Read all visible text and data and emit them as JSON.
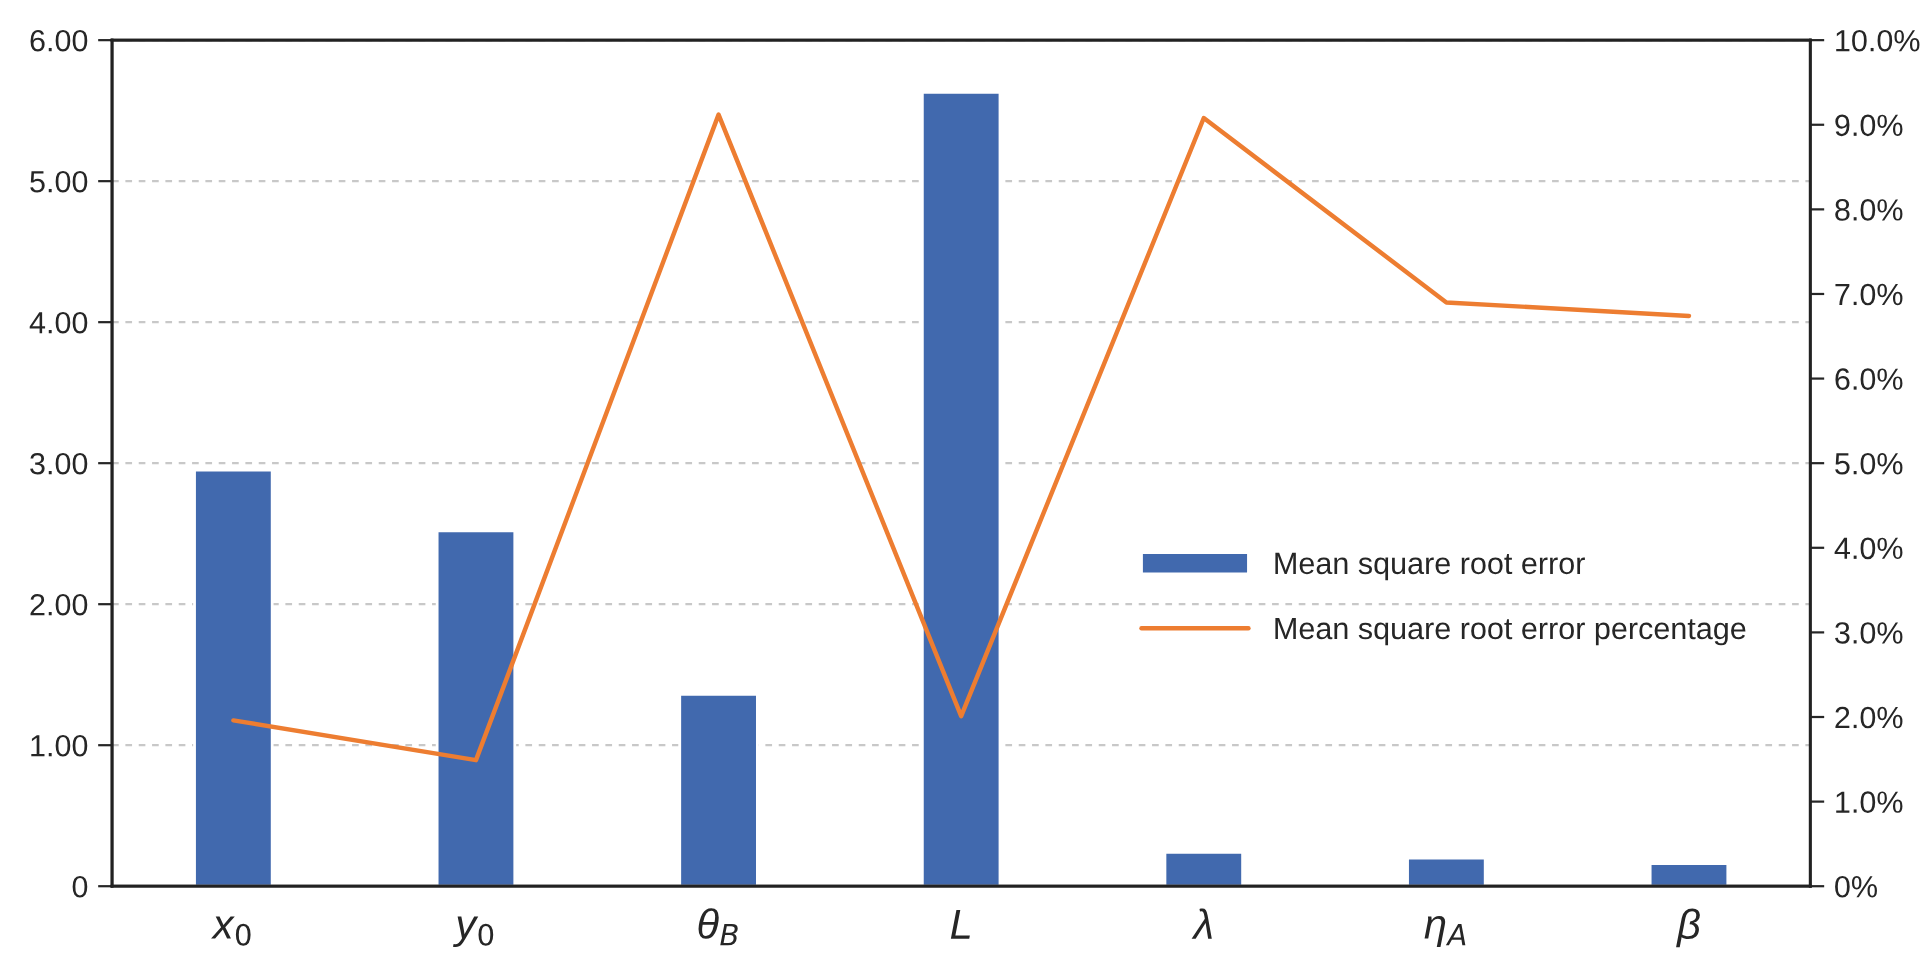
{
  "chart_data": {
    "type": "bar",
    "categories": [
      "x$_{0}$",
      "y$_{0}$",
      "θ$_{B}$",
      "L",
      "λ",
      "η$_{A}$",
      "β"
    ],
    "series": [
      {
        "name": "Mean square root error",
        "color": "#4169ae",
        "values": [
          2.95,
          2.52,
          1.36,
          5.63,
          0.24,
          0.2,
          0.16
        ]
      },
      {
        "name": "Mean square root error percentage",
        "type": "line",
        "axis": "y2",
        "color": "#ed7d31",
        "values": [
          1.96,
          1.49,
          9.12,
          2.01,
          9.08,
          6.9,
          6.74
        ]
      }
    ],
    "ylim": [
      0,
      6
    ],
    "yticks": [
      {
        "value": 0,
        "label": "0"
      },
      {
        "value": 1,
        "label": "1.00"
      },
      {
        "value": 2,
        "label": "2.00"
      },
      {
        "value": 3,
        "label": "3.00"
      },
      {
        "value": 4,
        "label": "4.00"
      },
      {
        "value": 5,
        "label": "5.00"
      },
      {
        "value": 6,
        "label": "6.00"
      }
    ],
    "y2lim": [
      0,
      10
    ],
    "y2ticks": [
      {
        "value": 0,
        "label": "0%"
      },
      {
        "value": 1,
        "label": "1.0%"
      },
      {
        "value": 2,
        "label": "2.0%"
      },
      {
        "value": 3,
        "label": "3.0%"
      },
      {
        "value": 4,
        "label": "4.0%"
      },
      {
        "value": 5,
        "label": "5.0%"
      },
      {
        "value": 6,
        "label": "6.0%"
      },
      {
        "value": 7,
        "label": "7.0%"
      },
      {
        "value": 8,
        "label": "8.0%"
      },
      {
        "value": 9,
        "label": "9.0%"
      },
      {
        "value": 10,
        "label": "10.0%"
      }
    ],
    "grid": "y",
    "legend": "right",
    "line_style": "solid",
    "marker": "none"
  }
}
